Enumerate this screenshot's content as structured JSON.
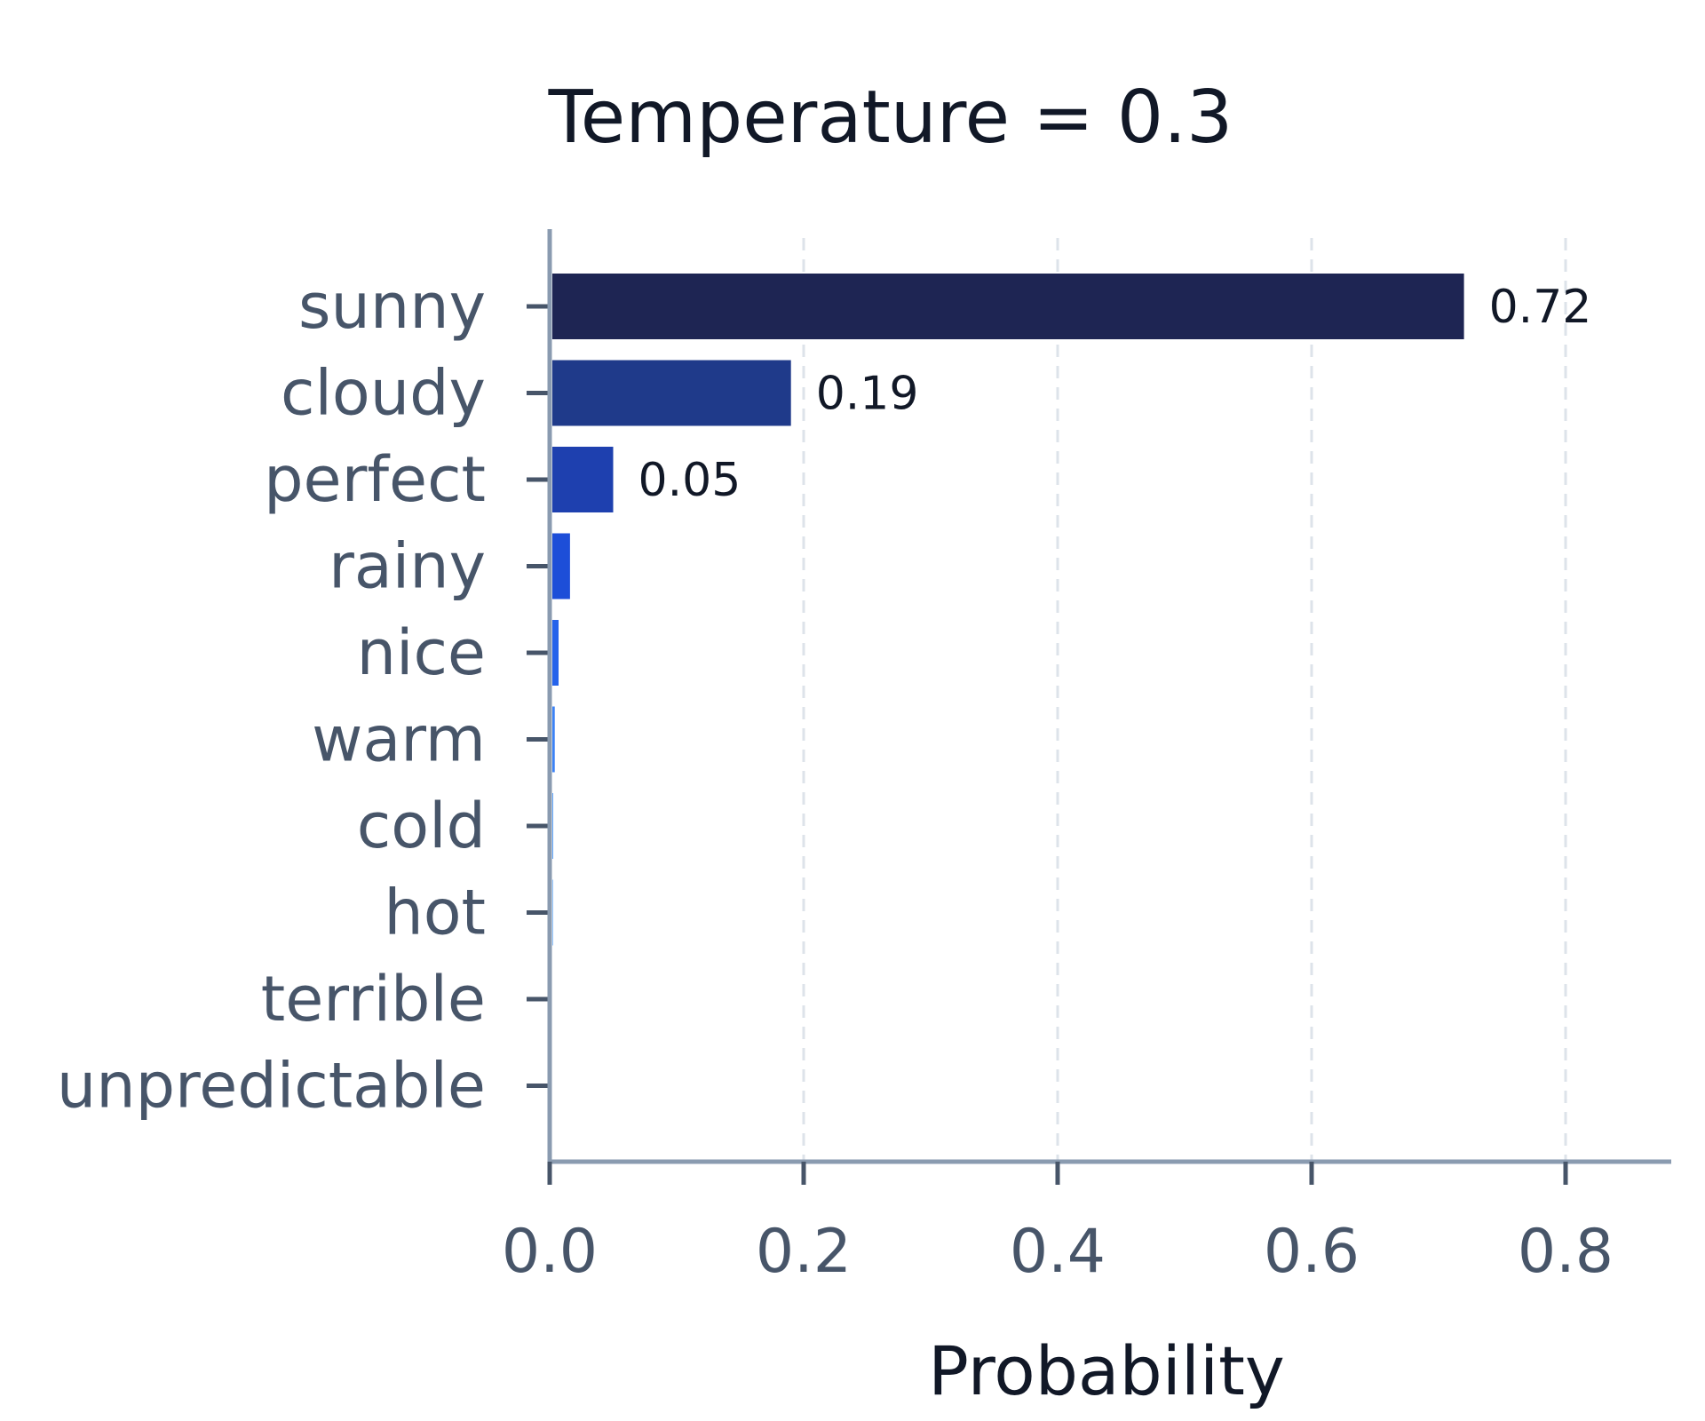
{
  "chart_data": {
    "type": "bar",
    "orientation": "horizontal",
    "title": "Temperature = 0.3",
    "xlabel": "Probability",
    "ylabel": "",
    "xlim": [
      0,
      0.88
    ],
    "xticks": [
      0.0,
      0.2,
      0.4,
      0.6,
      0.8
    ],
    "xtick_labels": [
      "0.0",
      "0.2",
      "0.4",
      "0.6",
      "0.8"
    ],
    "grid": "vertical dashed",
    "legend": "none",
    "categories": [
      "sunny",
      "cloudy",
      "perfect",
      "rainy",
      "nice",
      "warm",
      "cold",
      "hot",
      "terrible",
      "unpredictable"
    ],
    "values": [
      0.72,
      0.19,
      0.05,
      0.016,
      0.007,
      0.004,
      0.001,
      0.0005,
      0.0002,
      0.0001
    ],
    "data_labels": [
      "0.72",
      "0.19",
      "0.05",
      "",
      "",
      "",
      "",
      "",
      "",
      ""
    ],
    "bar_colors": [
      "#1e2553",
      "#1f3a8a",
      "#1e40af",
      "#1d4ed8",
      "#2563eb",
      "#3b82f6",
      "#60a5fa",
      "#93c5fd",
      "#bfdbfe",
      "#dbeafe"
    ],
    "colors": {
      "axis": "#8a9bb0",
      "grid": "#dde3ea",
      "text_dark": "#111827",
      "text_muted": "#475569"
    }
  }
}
